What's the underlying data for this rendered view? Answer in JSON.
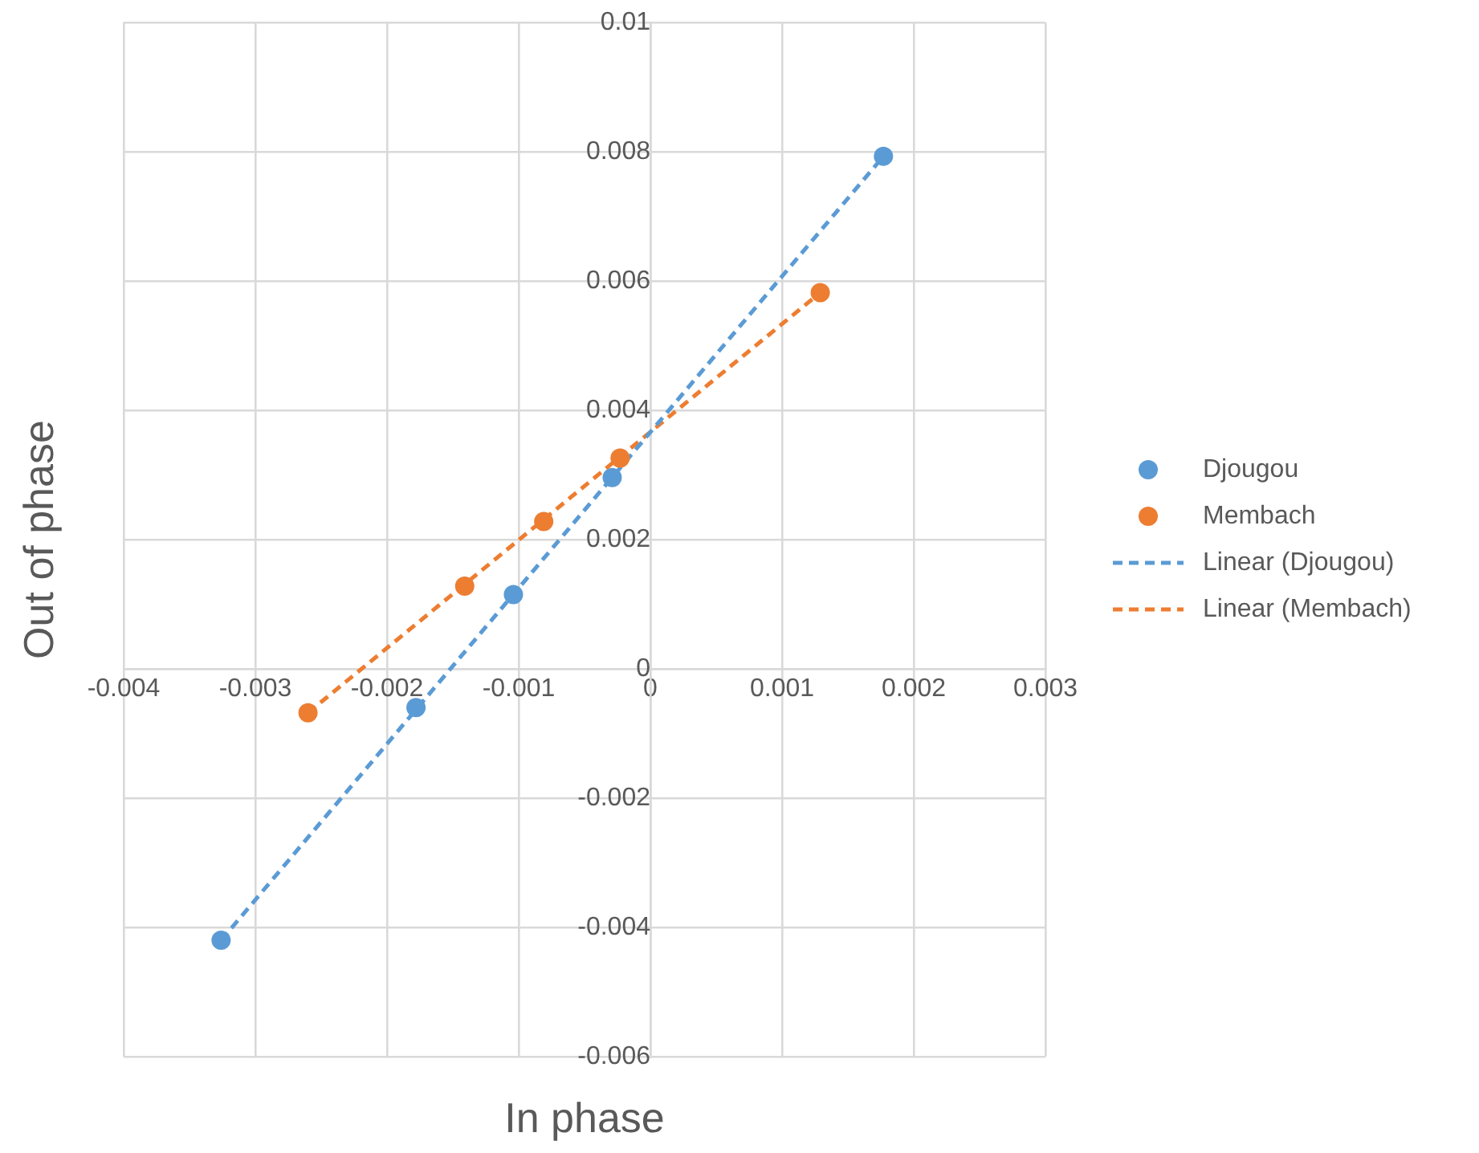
{
  "chart_data": {
    "type": "scatter",
    "xlabel": "In phase",
    "ylabel": "Out of phase",
    "xlim": [
      -0.004,
      0.003
    ],
    "xticks": [
      -0.004,
      -0.003,
      -0.002,
      -0.001,
      0,
      0.001,
      0.002,
      0.003
    ],
    "ylim": [
      -0.006,
      0.01
    ],
    "yticks": [
      -0.006,
      -0.004,
      -0.002,
      0,
      0.002,
      0.004,
      0.006,
      0.008,
      0.01
    ],
    "grid": true,
    "legend": "right",
    "marker": "circle",
    "series": [
      {
        "name": "Djougou",
        "color": "#5b9bd5",
        "x": [
          -0.00326,
          -0.00178,
          -0.00104,
          -0.00029,
          0.00177
        ],
        "values": [
          -0.0042,
          -0.0006,
          0.00115,
          0.00296,
          0.00793
        ]
      },
      {
        "name": "Membach",
        "color": "#ed7d31",
        "x": [
          -0.0026,
          -0.00141,
          -0.00081,
          -0.00023,
          0.00129
        ],
        "values": [
          -0.00068,
          0.00128,
          0.00228,
          0.00326,
          0.00582
        ]
      },
      {
        "name": "Linear (Djougou)",
        "type": "line",
        "line_style": "dashed",
        "marker": "none",
        "color": "#5b9bd5",
        "x": [
          -0.00326,
          0.00177
        ],
        "values": [
          -0.0042,
          0.00793
        ]
      },
      {
        "name": "Linear (Membach)",
        "type": "line",
        "line_style": "dashed",
        "marker": "none",
        "color": "#ed7d31",
        "x": [
          -0.0026,
          0.00129
        ],
        "values": [
          -0.00068,
          0.00582
        ]
      }
    ]
  }
}
